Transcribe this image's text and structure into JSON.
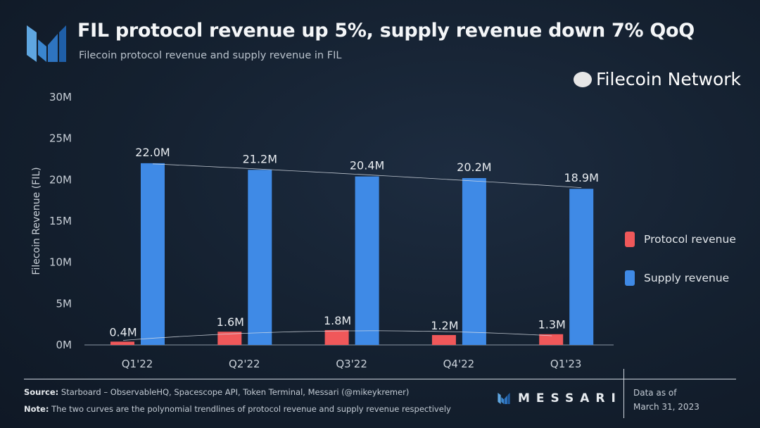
{
  "header": {
    "title": "FIL protocol revenue up 5%, supply revenue down 7% QoQ",
    "subtitle": "Filecoin protocol revenue and supply revenue in FIL"
  },
  "chart_data": {
    "type": "bar",
    "title": "FIL protocol revenue up 5%, supply revenue down 7% QoQ",
    "subtitle": "Filecoin protocol revenue and supply revenue in FIL",
    "xlabel": "",
    "ylabel": "Filecoin Revenue (FIL)",
    "ylim": [
      0,
      30
    ],
    "yunit": "M",
    "yticks": [
      "0M",
      "5M",
      "10M",
      "15M",
      "20M",
      "25M",
      "30M"
    ],
    "ytick_values": [
      0,
      5,
      10,
      15,
      20,
      25,
      30
    ],
    "categories": [
      "Q1'22",
      "Q2'22",
      "Q3'22",
      "Q4'22",
      "Q1'23"
    ],
    "series": [
      {
        "name": "Protocol revenue",
        "color": "#f0585a",
        "values": [
          0.4,
          1.6,
          1.8,
          1.2,
          1.3
        ],
        "labels": [
          "0.4M",
          "1.6M",
          "1.8M",
          "1.2M",
          "1.3M"
        ],
        "trendline": "polynomial"
      },
      {
        "name": "Supply revenue",
        "color": "#3f8ae6",
        "values": [
          22.0,
          21.2,
          20.4,
          20.2,
          18.9
        ],
        "labels": [
          "22.0M",
          "21.2M",
          "20.4M",
          "20.2M",
          "18.9M"
        ],
        "trendline": "polynomial"
      }
    ],
    "grid": false,
    "legend_position": "right"
  },
  "legend": {
    "items": [
      {
        "label": "Protocol revenue",
        "color": "#f0585a"
      },
      {
        "label": "Supply revenue",
        "color": "#3f8ae6"
      }
    ]
  },
  "footer": {
    "source_label": "Source:",
    "source_text": " Starboard – ObservableHQ, Spacescope API, Token Terminal, Messari (@mikeykremer)",
    "note_label": "Note:",
    "note_text": " The two curves are the polynomial trendlines of protocol revenue and supply revenue respectively",
    "brand": "MESSARI",
    "date_label": "Data as of",
    "date": "March 31, 2023",
    "watermark": "Filecoin Network"
  }
}
